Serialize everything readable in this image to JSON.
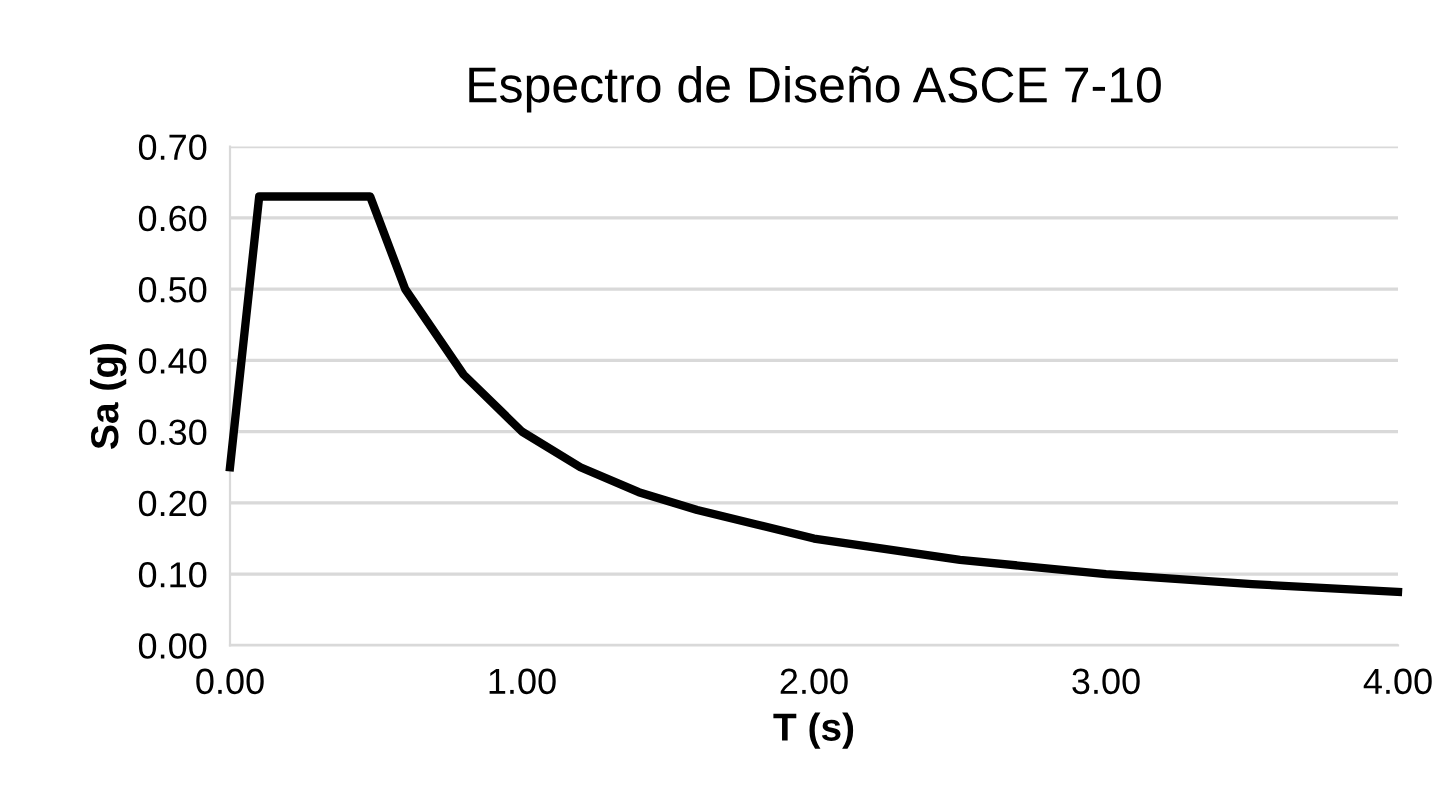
{
  "chart_data": {
    "type": "line",
    "title": "Espectro de Diseño ASCE 7-10",
    "xlabel": "T (s)",
    "ylabel": "Sa (g)",
    "x": [
      0,
      0.1,
      0.48,
      0.6,
      0.8,
      1.0,
      1.2,
      1.4,
      1.6,
      1.8,
      2.0,
      2.5,
      3.0,
      3.5,
      4.0
    ],
    "series": [
      {
        "color": "#000000",
        "values": [
          0.25,
          0.63,
          0.63,
          0.5,
          0.38,
          0.3,
          0.25,
          0.215,
          0.19,
          0.17,
          0.15,
          0.12,
          0.1,
          0.086,
          0.075
        ]
      }
    ],
    "xlim": [
      0,
      4
    ],
    "xticks": [
      {
        "value": 0,
        "label": "0.00"
      },
      {
        "value": 1,
        "label": "1.00"
      },
      {
        "value": 2,
        "label": "2.00"
      },
      {
        "value": 3,
        "label": "3.00"
      },
      {
        "value": 4,
        "label": "4.00"
      }
    ],
    "ylim": [
      0,
      0.7
    ],
    "yticks": [
      {
        "value": 0,
        "label": "0.00"
      },
      {
        "value": 0.1,
        "label": "0.10"
      },
      {
        "value": 0.2,
        "label": "0.20"
      },
      {
        "value": 0.3,
        "label": "0.30"
      },
      {
        "value": 0.4,
        "label": "0.40"
      },
      {
        "value": 0.5,
        "label": "0.50"
      },
      {
        "value": 0.6,
        "label": "0.60"
      },
      {
        "value": 0.7,
        "label": "0.70"
      }
    ],
    "grid": "y",
    "legend": false,
    "marker": "none",
    "line_style": "solid"
  }
}
